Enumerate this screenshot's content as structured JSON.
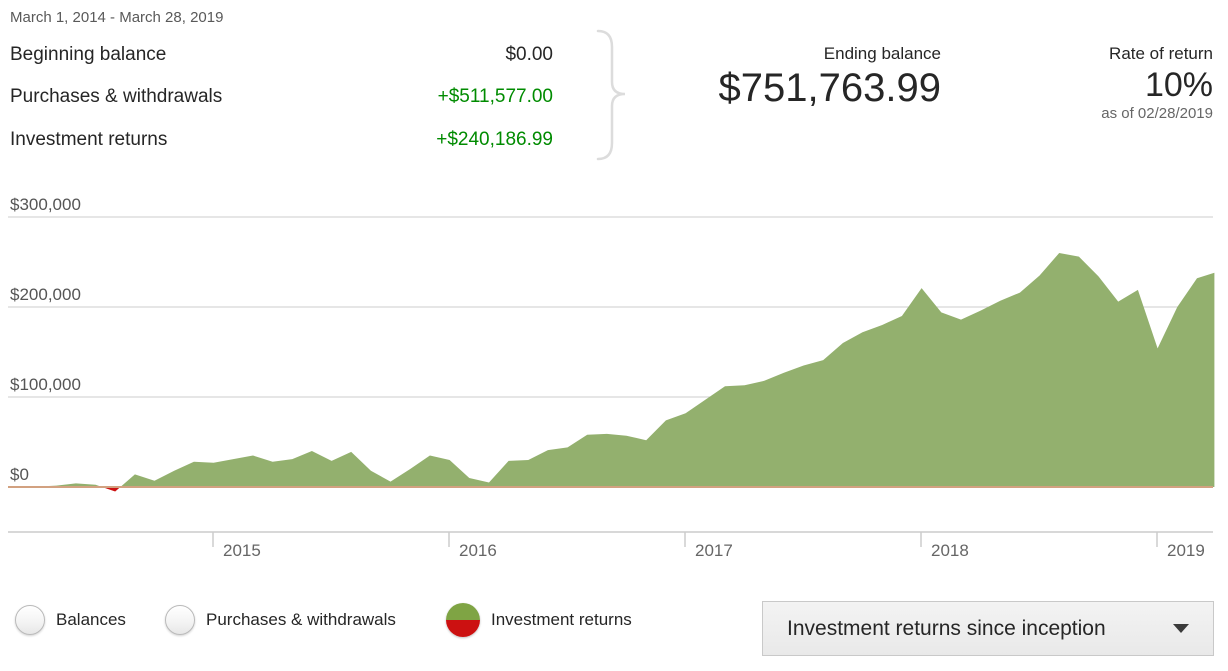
{
  "header": {
    "date_range": "March 1, 2014 - March 28, 2019",
    "summary_rows": [
      {
        "label": "Beginning balance",
        "value": "$0.00",
        "positive": false
      },
      {
        "label": "Purchases & withdrawals",
        "value": "+$511,577.00",
        "positive": true
      },
      {
        "label": "Investment returns",
        "value": "+$240,186.99",
        "positive": true
      }
    ],
    "ending_balance": {
      "label": "Ending balance",
      "value": "$751,763.99"
    },
    "rate_of_return": {
      "label": "Rate of return",
      "value": "10%",
      "as_of": "as of 02/28/2019"
    }
  },
  "chart_data": {
    "type": "area",
    "title": "Investment returns since inception",
    "xlabel": "",
    "ylabel": "",
    "ylim": [
      0,
      300000
    ],
    "grid": true,
    "legend_position": "bottom",
    "y_gridlines": [
      {
        "label": "$0",
        "value": 0
      },
      {
        "label": "$100,000",
        "value": 100000
      },
      {
        "label": "$200,000",
        "value": 200000
      },
      {
        "label": "$300,000",
        "value": 300000
      }
    ],
    "x_ticks": [
      {
        "label": "2015",
        "t": 2015
      },
      {
        "label": "2016",
        "t": 2016
      },
      {
        "label": "2017",
        "t": 2017
      },
      {
        "label": "2018",
        "t": 2018
      },
      {
        "label": "2019",
        "t": 2019
      }
    ],
    "colors": {
      "area_positive": "#93b06e",
      "area_negative": "#cc1111",
      "zero_line": "#d2a180",
      "gridline": "#cccccc",
      "axis_label": "#666666",
      "y_label": "#555555"
    },
    "series": [
      {
        "name": "Investment returns",
        "points": [
          [
            "2014-03",
            0
          ],
          [
            "2014-04",
            500
          ],
          [
            "2014-05",
            1500
          ],
          [
            "2014-06",
            4000
          ],
          [
            "2014-07",
            2500
          ],
          [
            "2014-08",
            -5000
          ],
          [
            "2014-09",
            14000
          ],
          [
            "2014-10",
            7000
          ],
          [
            "2014-11",
            18000
          ],
          [
            "2014-12",
            28000
          ],
          [
            "2015-01",
            27000
          ],
          [
            "2015-02",
            31000
          ],
          [
            "2015-03",
            35000
          ],
          [
            "2015-04",
            28000
          ],
          [
            "2015-05",
            31000
          ],
          [
            "2015-06",
            40000
          ],
          [
            "2015-07",
            29000
          ],
          [
            "2015-08",
            39000
          ],
          [
            "2015-09",
            18000
          ],
          [
            "2015-10",
            6000
          ],
          [
            "2015-11",
            20000
          ],
          [
            "2015-12",
            35000
          ],
          [
            "2016-01",
            30000
          ],
          [
            "2016-02",
            10000
          ],
          [
            "2016-03",
            5000
          ],
          [
            "2016-04",
            29000
          ],
          [
            "2016-05",
            30000
          ],
          [
            "2016-06",
            41000
          ],
          [
            "2016-07",
            44000
          ],
          [
            "2016-08",
            58000
          ],
          [
            "2016-09",
            59000
          ],
          [
            "2016-10",
            57000
          ],
          [
            "2016-11",
            52000
          ],
          [
            "2016-12",
            74000
          ],
          [
            "2017-01",
            82000
          ],
          [
            "2017-02",
            97000
          ],
          [
            "2017-03",
            112000
          ],
          [
            "2017-04",
            113000
          ],
          [
            "2017-05",
            118000
          ],
          [
            "2017-06",
            127000
          ],
          [
            "2017-07",
            135000
          ],
          [
            "2017-08",
            141000
          ],
          [
            "2017-09",
            160000
          ],
          [
            "2017-10",
            172000
          ],
          [
            "2017-11",
            180000
          ],
          [
            "2017-12",
            190000
          ],
          [
            "2018-01",
            221000
          ],
          [
            "2018-02",
            194000
          ],
          [
            "2018-03",
            186000
          ],
          [
            "2018-04",
            196000
          ],
          [
            "2018-05",
            207000
          ],
          [
            "2018-06",
            216000
          ],
          [
            "2018-07",
            235000
          ],
          [
            "2018-08",
            260000
          ],
          [
            "2018-09",
            256000
          ],
          [
            "2018-10",
            234000
          ],
          [
            "2018-11",
            206000
          ],
          [
            "2018-12",
            219000
          ],
          [
            "2019-01",
            154000
          ],
          [
            "2019-02",
            200000
          ],
          [
            "2019-03",
            232000
          ],
          [
            "2019-03-28",
            238000
          ]
        ]
      }
    ]
  },
  "legend": {
    "options": [
      {
        "label": "Balances",
        "selected": false
      },
      {
        "label": "Purchases & withdrawals",
        "selected": false
      },
      {
        "label": "Investment returns",
        "selected": true
      }
    ]
  },
  "dropdown": {
    "value": "Investment returns since inception"
  }
}
